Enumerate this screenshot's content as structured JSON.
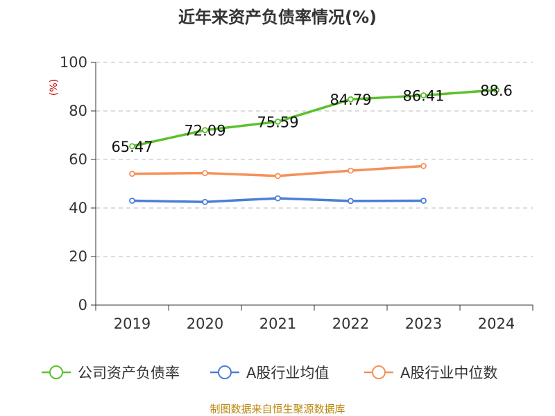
{
  "chart_data": {
    "type": "line",
    "title": "近年来资产负债率情况(%)",
    "ylabel": "(%)",
    "categories": [
      "2019",
      "2020",
      "2021",
      "2022",
      "2023",
      "2024"
    ],
    "yticks": [
      0,
      20,
      40,
      60,
      80,
      100
    ],
    "ylim": [
      0,
      100
    ],
    "grid": true,
    "legend_position": "bottom",
    "series": [
      {
        "name": "公司资产负债率",
        "color": "#5cc02d",
        "values": [
          65.47,
          72.09,
          75.59,
          84.79,
          86.41,
          88.6
        ],
        "labels": [
          "65.47",
          "72.09",
          "75.59",
          "84.79",
          "86.41",
          "88.6"
        ]
      },
      {
        "name": "A股行业均值",
        "color": "#4a7ed8",
        "values": [
          43.0,
          42.5,
          44.0,
          42.9,
          43.0,
          null
        ]
      },
      {
        "name": "A股行业中位数",
        "color": "#f5915a",
        "values": [
          54.1,
          54.4,
          53.2,
          55.4,
          57.3,
          null
        ]
      }
    ],
    "source": "制图数据来自恒生聚源数据库"
  }
}
